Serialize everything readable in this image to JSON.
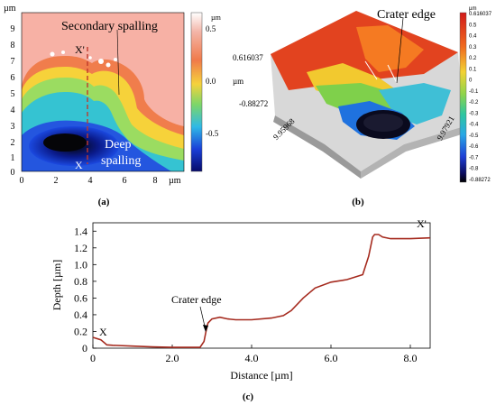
{
  "panel_a": {
    "unit_top": "µm",
    "colorbar_unit": "µm",
    "y_ticks": [
      "9",
      "8",
      "7",
      "6",
      "5",
      "4",
      "3",
      "2",
      "1",
      "0"
    ],
    "x_ticks": [
      "0",
      "2",
      "4",
      "6",
      "8"
    ],
    "x_unit": "µm",
    "colorbar_ticks": [
      "0.5",
      "0.0",
      "-0.5"
    ],
    "label_secondary": "Secondary spalling",
    "label_xprime": "X'",
    "label_x": "X",
    "label_deep_1": "Deep",
    "label_deep_2": "spalling",
    "caption": "(a)"
  },
  "panel_b": {
    "label_crater_edge": "Crater edge",
    "z_top": "0.616037",
    "z_unit": "µm",
    "z_bottom": "-0.88272",
    "axis_left": "9.95968",
    "axis_right": "9.97921",
    "colorbar_unit": "µm",
    "colorbar_ticks": [
      "0.616037",
      "0.5",
      "0.4",
      "0.3",
      "0.2",
      "0.1",
      "0",
      "-0.1",
      "-0.2",
      "-0.3",
      "-0.4",
      "-0.5",
      "-0.6",
      "-0.7",
      "-0.8",
      "-0.88272"
    ],
    "caption": "(b)"
  },
  "panel_c": {
    "ylabel": "Depth [µm]",
    "xlabel": "Distance [µm]",
    "annotation_crater": "Crater edge",
    "label_x": "X",
    "label_xprime": "X'",
    "caption": "(c)"
  },
  "chart_data": {
    "type": "line",
    "xlabel": "Distance [µm]",
    "ylabel": "Depth [µm]",
    "xlim": [
      0,
      8.5
    ],
    "ylim": [
      0,
      1.5
    ],
    "x_ticks": [
      "0",
      "2.0",
      "4.0",
      "6.0",
      "8.0"
    ],
    "y_ticks": [
      "0",
      "0.2",
      "0.4",
      "0.6",
      "0.8",
      "1.0",
      "1.2",
      "1.4"
    ],
    "color": "#a52a1e",
    "series": [
      {
        "x": [
          0,
          0.2,
          0.3,
          0.35,
          0.5,
          1.0,
          1.5,
          2.0,
          2.5,
          2.7,
          2.8,
          2.85,
          2.9,
          3.0,
          3.2,
          3.4,
          3.6,
          4.0,
          4.5,
          4.8,
          5.0,
          5.3,
          5.6,
          6.0,
          6.4,
          6.8,
          6.95,
          7.05,
          7.1,
          7.2,
          7.3,
          7.5,
          8.0,
          8.5
        ],
        "y": [
          0.13,
          0.1,
          0.06,
          0.04,
          0.035,
          0.025,
          0.015,
          0.01,
          0.01,
          0.01,
          0.08,
          0.2,
          0.3,
          0.35,
          0.37,
          0.35,
          0.34,
          0.34,
          0.36,
          0.39,
          0.45,
          0.6,
          0.72,
          0.79,
          0.82,
          0.88,
          1.1,
          1.33,
          1.36,
          1.36,
          1.33,
          1.31,
          1.31,
          1.32
        ]
      }
    ]
  }
}
